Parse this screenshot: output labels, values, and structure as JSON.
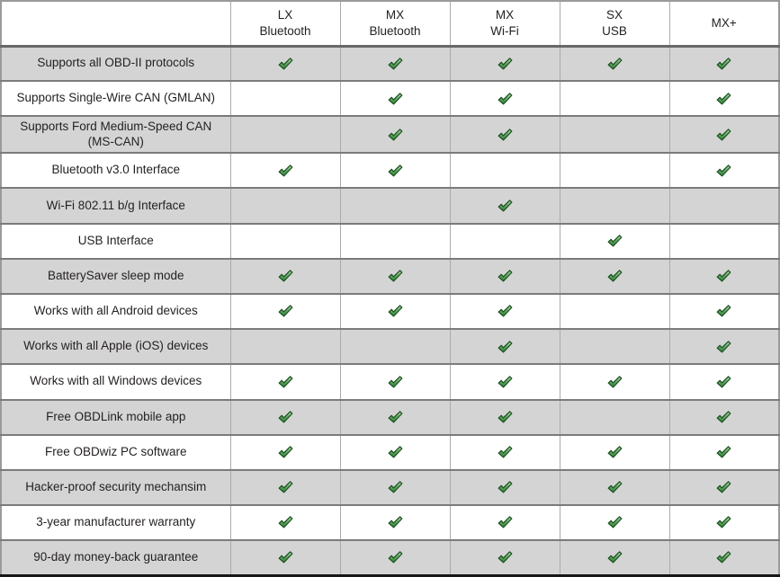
{
  "colors": {
    "row_alt_bg": "#d4d4d4",
    "row_bg": "#ffffff",
    "h_separator": "#7b7b7b",
    "v_separator": "#ababab",
    "outer_border": "#9a9a9a",
    "bottom_border": "#161616",
    "text": "#231f20",
    "check_green_dark": "#184f1e",
    "check_green_fill": "#2e7d35"
  },
  "header": {
    "feature_column_label": ""
  },
  "products": [
    {
      "line1": "LX",
      "line2": "Bluetooth"
    },
    {
      "line1": "MX",
      "line2": "Bluetooth"
    },
    {
      "line1": "MX",
      "line2": "Wi-Fi"
    },
    {
      "line1": "SX",
      "line2": "USB"
    },
    {
      "line1": "MX+",
      "line2": ""
    }
  ],
  "icons": {
    "check": "check-icon"
  },
  "features": [
    {
      "label": "Supports all OBD-II protocols",
      "checks": [
        true,
        true,
        true,
        true,
        true
      ]
    },
    {
      "label": "Supports Single-Wire CAN (GMLAN)",
      "checks": [
        false,
        true,
        true,
        false,
        true
      ]
    },
    {
      "label": "Supports Ford Medium-Speed CAN (MS-CAN)",
      "checks": [
        false,
        true,
        true,
        false,
        true
      ]
    },
    {
      "label": "Bluetooth v3.0 Interface",
      "checks": [
        true,
        true,
        false,
        false,
        true
      ]
    },
    {
      "label": "Wi-Fi 802.11 b/g Interface",
      "checks": [
        false,
        false,
        true,
        false,
        false
      ]
    },
    {
      "label": "USB Interface",
      "checks": [
        false,
        false,
        false,
        true,
        false
      ]
    },
    {
      "label": "BatterySaver sleep mode",
      "checks": [
        true,
        true,
        true,
        true,
        true
      ]
    },
    {
      "label": "Works with all Android devices",
      "checks": [
        true,
        true,
        true,
        false,
        true
      ]
    },
    {
      "label": "Works with all Apple (iOS) devices",
      "checks": [
        false,
        false,
        true,
        false,
        true
      ]
    },
    {
      "label": "Works with all Windows devices",
      "checks": [
        true,
        true,
        true,
        true,
        true
      ]
    },
    {
      "label": "Free OBDLink mobile app",
      "checks": [
        true,
        true,
        true,
        false,
        true
      ]
    },
    {
      "label": "Free OBDwiz PC software",
      "checks": [
        true,
        true,
        true,
        true,
        true
      ]
    },
    {
      "label": "Hacker-proof security mechansim",
      "checks": [
        true,
        true,
        true,
        true,
        true
      ]
    },
    {
      "label": "3-year manufacturer warranty",
      "checks": [
        true,
        true,
        true,
        true,
        true
      ]
    },
    {
      "label": "90-day money-back guarantee",
      "checks": [
        true,
        true,
        true,
        true,
        true
      ]
    }
  ]
}
